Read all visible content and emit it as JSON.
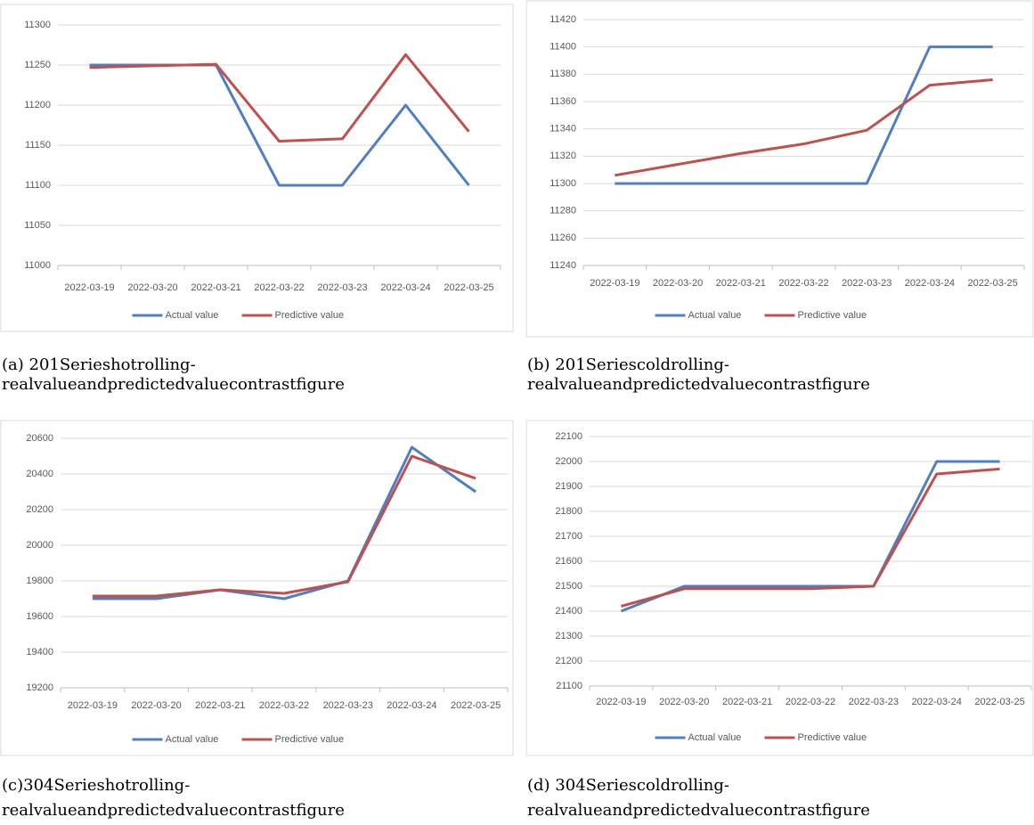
{
  "chart_data": [
    {
      "type": "line",
      "caption": [
        "(a)  201Serieshotrolling-",
        "realvalueandpredictedvaluecontrastfigure"
      ],
      "categories": [
        "2022-03-19",
        "2022-03-20",
        "2022-03-21",
        "2022-03-22",
        "2022-03-23",
        "2022-03-24",
        "2022-03-25"
      ],
      "series": [
        {
          "name": "Actual value",
          "color": "#4f7fc0",
          "values": [
            11250,
            11250,
            11250,
            11100,
            11100,
            11200,
            11100
          ]
        },
        {
          "name": "Predictive value",
          "color": "#c0504d",
          "values": [
            11247,
            11249,
            11251,
            11155,
            11158,
            11263,
            11167
          ]
        }
      ],
      "ylim": [
        11000,
        11300
      ],
      "yticks": [
        11000,
        11050,
        11100,
        11150,
        11200,
        11250,
        11300
      ],
      "grid": true,
      "legend": "bottom"
    },
    {
      "type": "line",
      "caption": [
        "(b)  201Seriescoldrolling-",
        "realvalueandpredictedvaluecontrastfigure"
      ],
      "categories": [
        "2022-03-19",
        "2022-03-20",
        "2022-03-21",
        "2022-03-22",
        "2022-03-23",
        "2022-03-24",
        "2022-03-25"
      ],
      "series": [
        {
          "name": "Actual value",
          "color": "#4f7fc0",
          "values": [
            11300,
            11300,
            11300,
            11300,
            11300,
            11400,
            11400
          ]
        },
        {
          "name": "Predictive value",
          "color": "#c0504d",
          "values": [
            11306,
            11314,
            11322,
            11329,
            11339,
            11372,
            11376
          ]
        }
      ],
      "ylim": [
        11240,
        11420
      ],
      "yticks": [
        11240,
        11260,
        11280,
        11300,
        11320,
        11340,
        11360,
        11380,
        11400,
        11420
      ],
      "grid": true,
      "legend": "bottom"
    },
    {
      "type": "line",
      "caption": [
        "(c)304Serieshotrolling-",
        "realvalueandpredictedvaluecontrastfigure"
      ],
      "categories": [
        "2022-03-19",
        "2022-03-20",
        "2022-03-21",
        "2022-03-22",
        "2022-03-23",
        "2022-03-24",
        "2022-03-25"
      ],
      "series": [
        {
          "name": "Actual value",
          "color": "#4f7fc0",
          "values": [
            19700,
            19700,
            19750,
            19700,
            19800,
            20550,
            20300
          ]
        },
        {
          "name": "Predictive value",
          "color": "#c0504d",
          "values": [
            19715,
            19715,
            19750,
            19730,
            19795,
            20500,
            20375
          ]
        }
      ],
      "ylim": [
        19200,
        20600
      ],
      "yticks": [
        19200,
        19400,
        19600,
        19800,
        20000,
        20200,
        20400,
        20600
      ],
      "grid": true,
      "legend": "bottom"
    },
    {
      "type": "line",
      "caption": [
        "(d)  304Seriescoldrolling-",
        "realvalueandpredictedvaluecontrastfigure"
      ],
      "categories": [
        "2022-03-19",
        "2022-03-20",
        "2022-03-21",
        "2022-03-22",
        "2022-03-23",
        "2022-03-24",
        "2022-03-25"
      ],
      "series": [
        {
          "name": "Actual value",
          "color": "#4f7fc0",
          "values": [
            21400,
            21500,
            21500,
            21500,
            21500,
            22000,
            22000
          ]
        },
        {
          "name": "Predictive value",
          "color": "#c0504d",
          "values": [
            21420,
            21490,
            21490,
            21490,
            21500,
            21950,
            21970
          ]
        }
      ],
      "ylim": [
        21100,
        22100
      ],
      "yticks": [
        21100,
        21200,
        21300,
        21400,
        21500,
        21600,
        21700,
        21800,
        21900,
        22000,
        22100
      ],
      "grid": true,
      "legend": "bottom"
    }
  ]
}
